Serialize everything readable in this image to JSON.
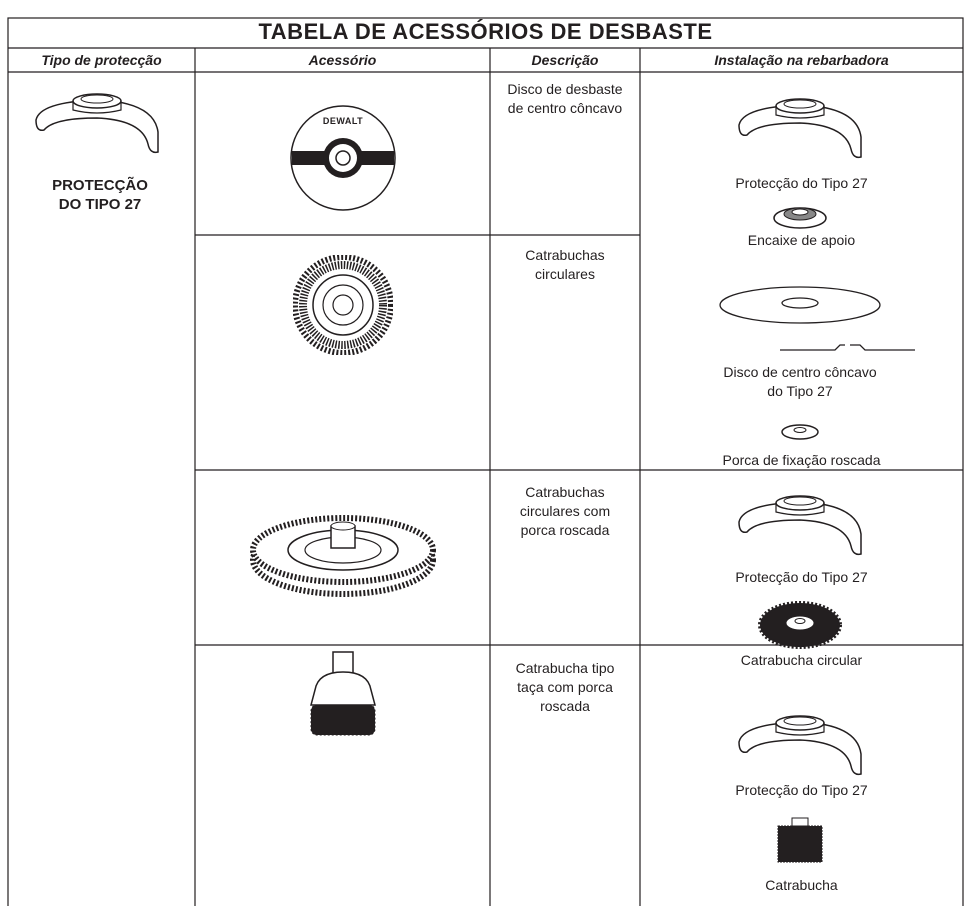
{
  "title": "TABELA DE ACESSÓRIOS DE DESBASTE",
  "headers": [
    "Tipo de protecção",
    "Acessório",
    "Descrição",
    "Instalação na rebarbadora"
  ],
  "guard_type": "PROTECÇÃO DO TIPO 27",
  "rows": [
    {
      "logo": "DEWALT",
      "description": "Disco de desbaste de centro côncavo"
    },
    {
      "description": "Catrabuchas circulares"
    },
    {
      "description": "Catrabuchas circulares com porca roscada"
    },
    {
      "description": "Catrabucha tipo taça com porca roscada"
    }
  ],
  "installations": [
    {
      "items": [
        "Protecção do Tipo 27",
        "Encaixe de apoio",
        "Disco de centro côncavo do Tipo 27",
        "Porca de fixação roscada"
      ]
    },
    {
      "items": [
        "Protecção do Tipo 27",
        "Catrabucha circular"
      ]
    },
    {
      "items": [
        "Protecção do Tipo 27",
        "Catrabucha"
      ]
    }
  ]
}
